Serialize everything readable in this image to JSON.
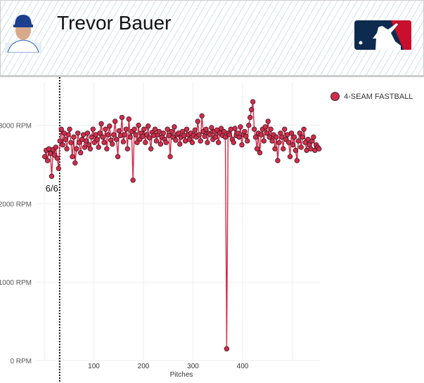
{
  "header": {
    "player_name": "Trevor Bauer",
    "logo_text": "MLB"
  },
  "colors": {
    "series": "#d22c4b",
    "marker_stroke": "#3a1a20"
  },
  "chart_data": {
    "type": "line",
    "title": "Trevor Bauer",
    "xlabel": "Pitches",
    "ylabel": "",
    "xlim": [
      0,
      555
    ],
    "ylim": [
      0,
      3500
    ],
    "x_ticks": [
      {
        "v": 100,
        "label": "100"
      },
      {
        "v": 200,
        "label": "200"
      },
      {
        "v": 300,
        "label": "300"
      },
      {
        "v": 400,
        "label": "400"
      }
    ],
    "y_ticks": [
      {
        "v": 0,
        "label": "0 RPM"
      },
      {
        "v": 1000,
        "label": "1000 RPM"
      },
      {
        "v": 2000,
        "label": "2000 RPM"
      },
      {
        "v": 3000,
        "label": "3000 RPM"
      }
    ],
    "legend": {
      "position": "top-right",
      "entries": [
        "4-SEAM FASTBALL"
      ]
    },
    "annotation": {
      "x": 31,
      "label": "6/6"
    },
    "series": [
      {
        "name": "4-SEAM FASTBALL",
        "x_start": 1,
        "x_step": 2.78,
        "values": [
          2600,
          2680,
          2550,
          2700,
          2640,
          2350,
          2690,
          2620,
          2720,
          2580,
          2450,
          2800,
          2950,
          2750,
          2900,
          2820,
          2700,
          2880,
          2950,
          2780,
          2600,
          2850,
          2520,
          2700,
          2900,
          2780,
          2650,
          2820,
          2880,
          2720,
          2800,
          2900,
          2750,
          2700,
          2850,
          2950,
          2780,
          2880,
          2820,
          2720,
          2900,
          3020,
          2850,
          2780,
          2950,
          2700,
          2880,
          2990,
          2810,
          2760,
          2880,
          3050,
          2820,
          2600,
          2930,
          2870,
          3100,
          2790,
          2880,
          2950,
          2700,
          3080,
          2850,
          2920,
          2300,
          2950,
          2880,
          2780,
          3000,
          2820,
          2900,
          2860,
          2950,
          2780,
          2880,
          2990,
          2840,
          2700,
          2910,
          2870,
          2950,
          2800,
          2880,
          2920,
          2760,
          2850,
          2900,
          2820,
          2780,
          2950,
          2870,
          2600,
          2920,
          2850,
          2980,
          2810,
          2880,
          2900,
          2760,
          2850,
          2920,
          2870,
          2800,
          2950,
          2880,
          2820,
          2900,
          2780,
          2870,
          2940,
          2850,
          3050,
          2880,
          2800,
          3120,
          2920,
          2860,
          2950,
          2780,
          2900,
          2880,
          2970,
          2820,
          2920,
          2850,
          2940,
          2780,
          2900,
          2960,
          2870,
          2920,
          2850,
          150,
          2900,
          2880,
          2950,
          2820,
          2780,
          2960,
          2870,
          2900,
          2850,
          2980,
          2750,
          2880,
          2920,
          2860,
          2800,
          3000,
          3100,
          3200,
          3300,
          2950,
          2850,
          2700,
          2900,
          2650,
          2880,
          2950,
          2800,
          2980,
          2900,
          3050,
          2850,
          2950,
          2800,
          2880,
          2700,
          2850,
          2550,
          2780,
          2900,
          2850,
          2700,
          2950,
          2820,
          2880,
          2780,
          2600,
          2900,
          2750,
          2850,
          2680,
          2550,
          2800,
          2900,
          2720,
          2850,
          2950,
          2780,
          2680,
          2820,
          2750,
          2700,
          2800,
          2850,
          2680,
          2750,
          2720,
          2700
        ]
      }
    ]
  }
}
